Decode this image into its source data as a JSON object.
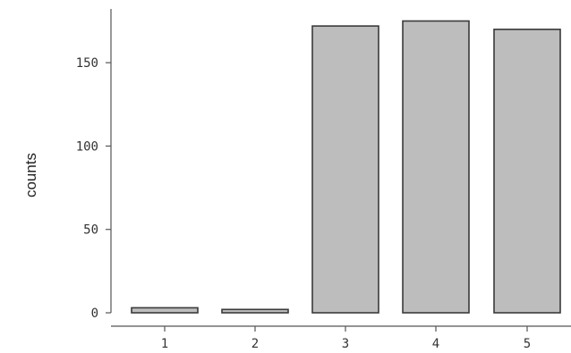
{
  "chart_data": {
    "type": "bar",
    "categories": [
      "1",
      "2",
      "3",
      "4",
      "5"
    ],
    "values": [
      3,
      2,
      172,
      175,
      170
    ],
    "title": "",
    "xlabel": "",
    "ylabel": "counts",
    "ylim": [
      0,
      180
    ],
    "yticks": [
      0,
      50,
      100,
      150
    ],
    "ytick_labels": [
      "0",
      "50",
      "100",
      "150"
    ],
    "grid": false,
    "bar_color": "#bdbdbd",
    "edge_color": "#3a3a3a"
  }
}
